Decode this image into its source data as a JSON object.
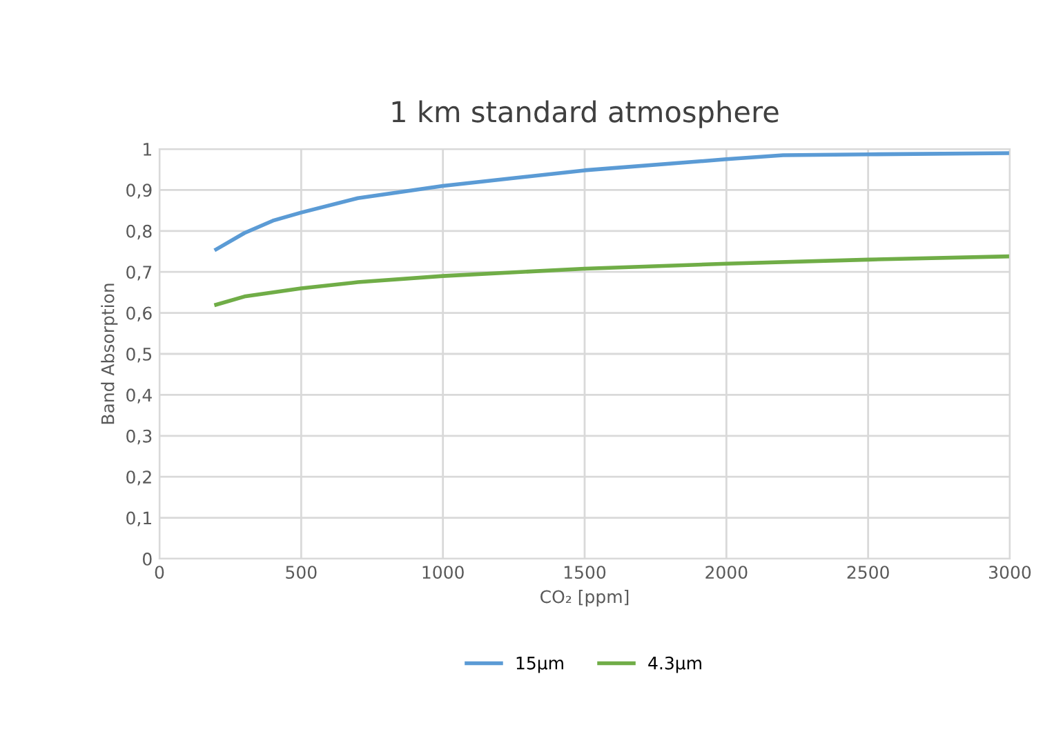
{
  "chart_data": {
    "type": "line",
    "title": "1 km standard atmosphere",
    "xlabel": "CO₂ [ppm]",
    "ylabel": "Band Absorption",
    "xlim": [
      0,
      3000
    ],
    "xticks": [
      0,
      500,
      1000,
      1500,
      2000,
      2500,
      3000
    ],
    "ylim": [
      0,
      1
    ],
    "yticks": [
      0,
      {
        "value": 0.1,
        "label": "0,1"
      },
      {
        "value": 0.2,
        "label": "0,2"
      },
      {
        "value": 0.3,
        "label": "0,3"
      },
      {
        "value": 0.4,
        "label": "0,4"
      },
      {
        "value": 0.5,
        "label": "0,5"
      },
      {
        "value": 0.6,
        "label": "0,6"
      },
      {
        "value": 0.7,
        "label": "0,7"
      },
      {
        "value": 0.8,
        "label": "0,8"
      },
      {
        "value": 0.9,
        "label": "0,9"
      },
      1
    ],
    "grid": true,
    "legend": "bottom",
    "marker": "none",
    "line_style": "solid",
    "series": [
      {
        "name": "15µm",
        "color": "#5b9bd5",
        "x": [
          200,
          300,
          400,
          500,
          700,
          1000,
          1500,
          2000,
          2200,
          2500,
          3000
        ],
        "values": [
          0.755,
          0.795,
          0.825,
          0.845,
          0.88,
          0.91,
          0.948,
          0.975,
          0.985,
          0.987,
          0.99
        ]
      },
      {
        "name": "4.3µm",
        "color": "#70ad47",
        "x": [
          200,
          300,
          500,
          700,
          1000,
          1500,
          2000,
          2500,
          3000
        ],
        "values": [
          0.62,
          0.64,
          0.66,
          0.675,
          0.69,
          0.708,
          0.72,
          0.73,
          0.738
        ]
      }
    ]
  }
}
